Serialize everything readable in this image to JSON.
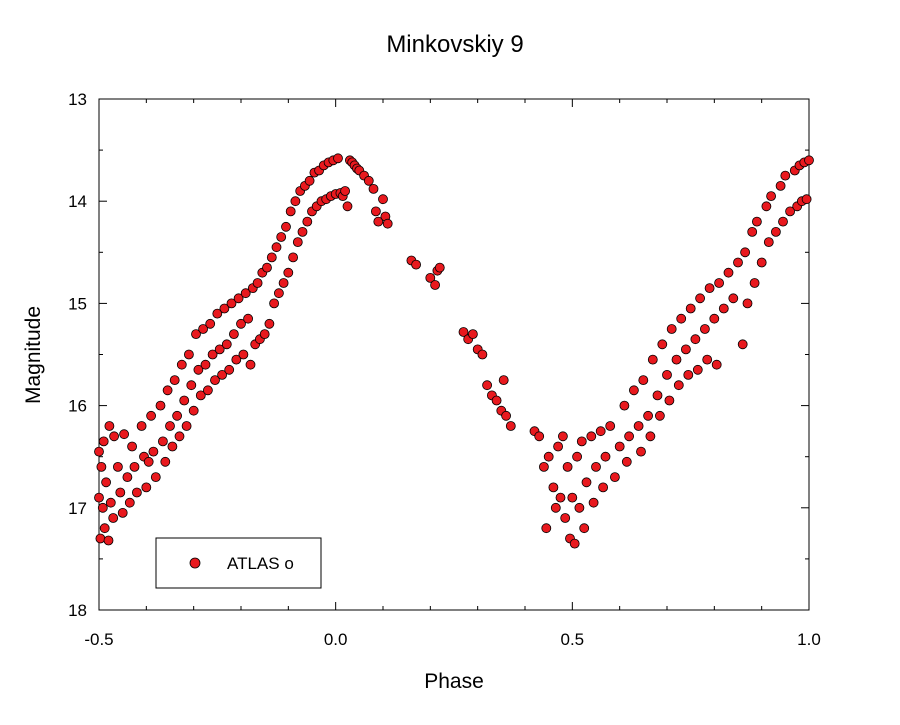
{
  "chart_data": {
    "type": "scatter",
    "title": "Minkovskiy 9",
    "xlabel": "Phase",
    "ylabel": "Magnitude",
    "xlim": [
      -0.5,
      1.0
    ],
    "ylim": [
      13,
      18
    ],
    "y_inverted": true,
    "grid": false,
    "legend_position": "bottom-left",
    "x_ticks": [
      {
        "value": -0.5,
        "label": "-0.5"
      },
      {
        "value": 0.0,
        "label": "0.0"
      },
      {
        "value": 0.5,
        "label": "0.5"
      },
      {
        "value": 1.0,
        "label": "1.0"
      }
    ],
    "y_ticks": [
      {
        "value": 13,
        "label": "13"
      },
      {
        "value": 14,
        "label": "14"
      },
      {
        "value": 15,
        "label": "15"
      },
      {
        "value": 16,
        "label": "16"
      },
      {
        "value": 17,
        "label": "17"
      },
      {
        "value": 18,
        "label": "18"
      }
    ],
    "series": [
      {
        "name": "ATLAS o",
        "color": "#e8191e",
        "edge_color": "#000000",
        "points": [
          [
            -0.5,
            16.45
          ],
          [
            -0.5,
            16.9
          ],
          [
            -0.497,
            17.3
          ],
          [
            -0.495,
            16.6
          ],
          [
            -0.492,
            17.0
          ],
          [
            -0.49,
            16.35
          ],
          [
            -0.488,
            17.2
          ],
          [
            -0.485,
            16.75
          ],
          [
            -0.48,
            17.32
          ],
          [
            -0.478,
            16.2
          ],
          [
            -0.475,
            16.95
          ],
          [
            -0.47,
            17.1
          ],
          [
            -0.468,
            16.3
          ],
          [
            -0.46,
            16.6
          ],
          [
            -0.455,
            16.85
          ],
          [
            -0.45,
            17.05
          ],
          [
            -0.447,
            16.28
          ],
          [
            -0.44,
            16.7
          ],
          [
            -0.435,
            16.95
          ],
          [
            -0.43,
            16.4
          ],
          [
            -0.425,
            16.6
          ],
          [
            -0.42,
            16.85
          ],
          [
            -0.41,
            16.2
          ],
          [
            -0.405,
            16.5
          ],
          [
            -0.4,
            16.8
          ],
          [
            -0.395,
            16.55
          ],
          [
            -0.39,
            16.1
          ],
          [
            -0.385,
            16.45
          ],
          [
            -0.38,
            16.7
          ],
          [
            -0.37,
            16.0
          ],
          [
            -0.365,
            16.35
          ],
          [
            -0.36,
            16.55
          ],
          [
            -0.355,
            15.85
          ],
          [
            -0.35,
            16.2
          ],
          [
            -0.345,
            16.4
          ],
          [
            -0.34,
            15.75
          ],
          [
            -0.335,
            16.1
          ],
          [
            -0.33,
            16.3
          ],
          [
            -0.325,
            15.6
          ],
          [
            -0.32,
            15.95
          ],
          [
            -0.315,
            16.2
          ],
          [
            -0.31,
            15.5
          ],
          [
            -0.305,
            15.8
          ],
          [
            -0.3,
            16.05
          ],
          [
            -0.295,
            15.3
          ],
          [
            -0.29,
            15.65
          ],
          [
            -0.285,
            15.9
          ],
          [
            -0.28,
            15.25
          ],
          [
            -0.275,
            15.6
          ],
          [
            -0.27,
            15.85
          ],
          [
            -0.265,
            15.2
          ],
          [
            -0.26,
            15.5
          ],
          [
            -0.255,
            15.75
          ],
          [
            -0.25,
            15.1
          ],
          [
            -0.245,
            15.45
          ],
          [
            -0.24,
            15.7
          ],
          [
            -0.235,
            15.05
          ],
          [
            -0.23,
            15.4
          ],
          [
            -0.225,
            15.65
          ],
          [
            -0.22,
            15.0
          ],
          [
            -0.215,
            15.3
          ],
          [
            -0.21,
            15.55
          ],
          [
            -0.205,
            14.95
          ],
          [
            -0.2,
            15.2
          ],
          [
            -0.195,
            15.5
          ],
          [
            -0.19,
            14.9
          ],
          [
            -0.185,
            15.15
          ],
          [
            -0.18,
            15.6
          ],
          [
            -0.175,
            14.85
          ],
          [
            -0.17,
            15.4
          ],
          [
            -0.165,
            14.8
          ],
          [
            -0.16,
            15.35
          ],
          [
            -0.155,
            14.7
          ],
          [
            -0.15,
            15.3
          ],
          [
            -0.145,
            14.65
          ],
          [
            -0.14,
            15.2
          ],
          [
            -0.135,
            14.55
          ],
          [
            -0.13,
            15.0
          ],
          [
            -0.125,
            14.45
          ],
          [
            -0.12,
            14.9
          ],
          [
            -0.115,
            14.35
          ],
          [
            -0.11,
            14.8
          ],
          [
            -0.105,
            14.25
          ],
          [
            -0.1,
            14.7
          ],
          [
            -0.095,
            14.1
          ],
          [
            -0.09,
            14.55
          ],
          [
            -0.085,
            14.0
          ],
          [
            -0.08,
            14.4
          ],
          [
            -0.075,
            13.9
          ],
          [
            -0.07,
            14.3
          ],
          [
            -0.065,
            13.85
          ],
          [
            -0.06,
            14.2
          ],
          [
            -0.055,
            13.8
          ],
          [
            -0.05,
            14.1
          ],
          [
            -0.045,
            13.72
          ],
          [
            -0.04,
            14.05
          ],
          [
            -0.035,
            13.7
          ],
          [
            -0.03,
            14.0
          ],
          [
            -0.025,
            13.65
          ],
          [
            -0.02,
            13.98
          ],
          [
            -0.015,
            13.62
          ],
          [
            -0.01,
            13.95
          ],
          [
            -0.005,
            13.6
          ],
          [
            0.0,
            13.93
          ],
          [
            0.005,
            13.58
          ],
          [
            0.01,
            13.92
          ],
          [
            0.015,
            13.95
          ],
          [
            0.02,
            13.9
          ],
          [
            0.025,
            14.05
          ],
          [
            0.03,
            13.6
          ],
          [
            0.035,
            13.62
          ],
          [
            0.04,
            13.65
          ],
          [
            0.045,
            13.68
          ],
          [
            0.05,
            13.7
          ],
          [
            0.06,
            13.75
          ],
          [
            0.07,
            13.8
          ],
          [
            0.08,
            13.88
          ],
          [
            0.085,
            14.1
          ],
          [
            0.09,
            14.2
          ],
          [
            0.1,
            13.98
          ],
          [
            0.105,
            14.15
          ],
          [
            0.11,
            14.22
          ],
          [
            0.16,
            14.58
          ],
          [
            0.17,
            14.62
          ],
          [
            0.2,
            14.75
          ],
          [
            0.21,
            14.82
          ],
          [
            0.215,
            14.68
          ],
          [
            0.22,
            14.65
          ],
          [
            0.27,
            15.28
          ],
          [
            0.28,
            15.35
          ],
          [
            0.29,
            15.3
          ],
          [
            0.3,
            15.45
          ],
          [
            0.31,
            15.5
          ],
          [
            0.32,
            15.8
          ],
          [
            0.33,
            15.9
          ],
          [
            0.34,
            15.95
          ],
          [
            0.35,
            16.05
          ],
          [
            0.355,
            15.75
          ],
          [
            0.36,
            16.1
          ],
          [
            0.37,
            16.2
          ],
          [
            0.42,
            16.25
          ],
          [
            0.43,
            16.3
          ],
          [
            0.44,
            16.6
          ],
          [
            0.445,
            17.2
          ],
          [
            0.45,
            16.5
          ],
          [
            0.46,
            16.8
          ],
          [
            0.465,
            17.0
          ],
          [
            0.47,
            16.4
          ],
          [
            0.475,
            16.9
          ],
          [
            0.48,
            16.3
          ],
          [
            0.485,
            17.1
          ],
          [
            0.49,
            16.6
          ],
          [
            0.495,
            17.3
          ],
          [
            0.5,
            16.9
          ],
          [
            0.505,
            17.35
          ],
          [
            0.51,
            16.5
          ],
          [
            0.515,
            17.0
          ],
          [
            0.52,
            16.35
          ],
          [
            0.525,
            17.2
          ],
          [
            0.53,
            16.75
          ],
          [
            0.54,
            16.3
          ],
          [
            0.545,
            16.95
          ],
          [
            0.55,
            16.6
          ],
          [
            0.56,
            16.25
          ],
          [
            0.565,
            16.8
          ],
          [
            0.57,
            16.5
          ],
          [
            0.58,
            16.2
          ],
          [
            0.59,
            16.7
          ],
          [
            0.6,
            16.4
          ],
          [
            0.61,
            16.0
          ],
          [
            0.615,
            16.55
          ],
          [
            0.62,
            16.3
          ],
          [
            0.63,
            15.85
          ],
          [
            0.64,
            16.2
          ],
          [
            0.645,
            16.45
          ],
          [
            0.65,
            15.75
          ],
          [
            0.66,
            16.1
          ],
          [
            0.665,
            16.3
          ],
          [
            0.67,
            15.55
          ],
          [
            0.68,
            15.9
          ],
          [
            0.685,
            16.1
          ],
          [
            0.69,
            15.4
          ],
          [
            0.7,
            15.7
          ],
          [
            0.705,
            15.95
          ],
          [
            0.71,
            15.25
          ],
          [
            0.72,
            15.55
          ],
          [
            0.725,
            15.8
          ],
          [
            0.73,
            15.15
          ],
          [
            0.74,
            15.45
          ],
          [
            0.745,
            15.7
          ],
          [
            0.75,
            15.05
          ],
          [
            0.76,
            15.35
          ],
          [
            0.765,
            15.65
          ],
          [
            0.77,
            14.95
          ],
          [
            0.78,
            15.25
          ],
          [
            0.785,
            15.55
          ],
          [
            0.79,
            14.85
          ],
          [
            0.8,
            15.15
          ],
          [
            0.805,
            15.6
          ],
          [
            0.81,
            14.8
          ],
          [
            0.82,
            15.05
          ],
          [
            0.83,
            14.7
          ],
          [
            0.84,
            14.95
          ],
          [
            0.85,
            14.6
          ],
          [
            0.86,
            15.4
          ],
          [
            0.865,
            14.5
          ],
          [
            0.87,
            15.0
          ],
          [
            0.88,
            14.3
          ],
          [
            0.885,
            14.8
          ],
          [
            0.89,
            14.2
          ],
          [
            0.9,
            14.6
          ],
          [
            0.91,
            14.05
          ],
          [
            0.915,
            14.4
          ],
          [
            0.92,
            13.95
          ],
          [
            0.93,
            14.3
          ],
          [
            0.94,
            13.85
          ],
          [
            0.945,
            14.2
          ],
          [
            0.95,
            13.75
          ],
          [
            0.96,
            14.1
          ],
          [
            0.97,
            13.7
          ],
          [
            0.975,
            14.05
          ],
          [
            0.98,
            13.65
          ],
          [
            0.985,
            14.0
          ],
          [
            0.99,
            13.62
          ],
          [
            0.995,
            13.98
          ],
          [
            1.0,
            13.6
          ]
        ]
      }
    ]
  }
}
